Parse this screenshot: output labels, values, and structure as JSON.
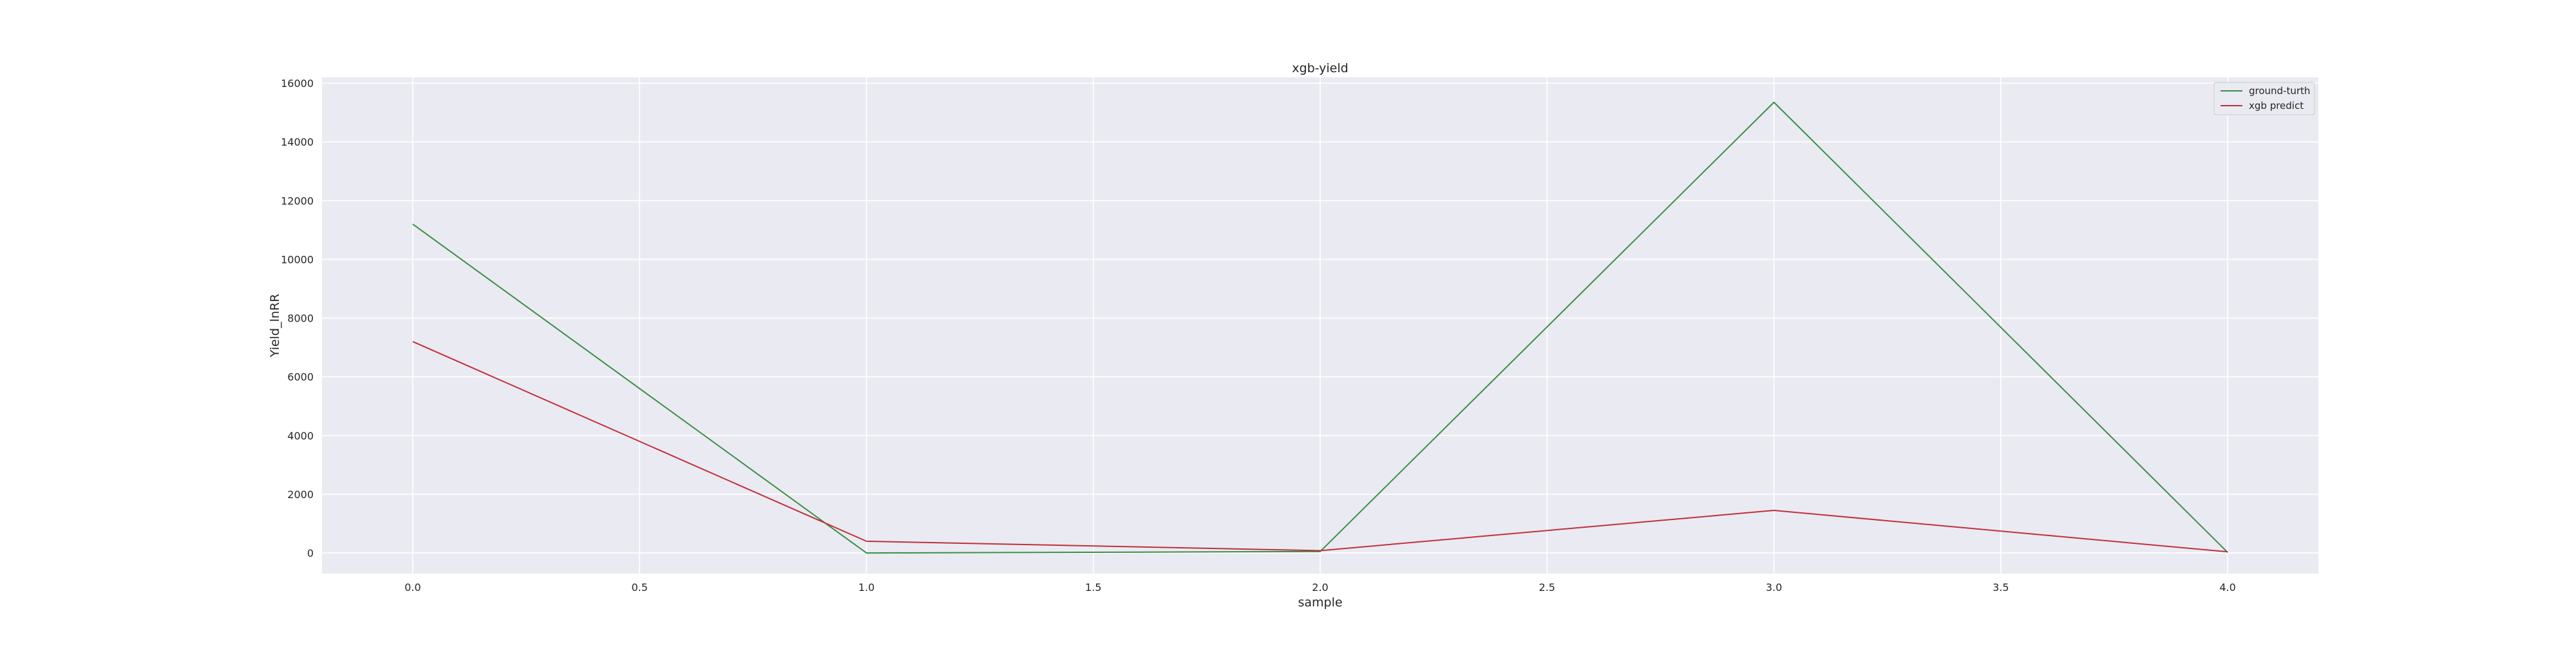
{
  "chart_data": {
    "type": "line",
    "title": "xgb-yield",
    "xlabel": "sample",
    "ylabel": "Yield_lnRR",
    "x": [
      0,
      1,
      2,
      3,
      4
    ],
    "xlim": [
      -0.2,
      4.2
    ],
    "ylim": [
      -700,
      16200
    ],
    "xticks": [
      0,
      0.5,
      1,
      1.5,
      2,
      2.5,
      3,
      3.5,
      4
    ],
    "xtick_labels": [
      "0.0",
      "0.5",
      "1.0",
      "1.5",
      "2.0",
      "2.5",
      "3.0",
      "3.5",
      "4.0"
    ],
    "yticks": [
      0,
      2000,
      4000,
      6000,
      8000,
      10000,
      12000,
      14000,
      16000
    ],
    "ytick_labels": [
      "0",
      "2000",
      "4000",
      "6000",
      "8000",
      "10000",
      "12000",
      "14000",
      "16000"
    ],
    "grid": true,
    "legend_position": "top-right",
    "series": [
      {
        "name": "ground-turth",
        "color": "#3a8f45",
        "values": [
          11200,
          0,
          50,
          15350,
          20
        ]
      },
      {
        "name": "xgb predict",
        "color": "#c0303b",
        "values": [
          7200,
          400,
          80,
          1450,
          40
        ]
      }
    ],
    "colors": {
      "plot_background": "#eaeaf2",
      "grid": "#ffffff"
    }
  }
}
